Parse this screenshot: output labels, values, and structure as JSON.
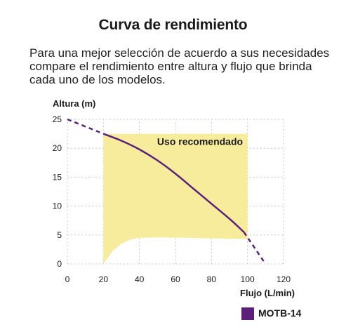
{
  "header": {
    "title": "Curva de rendimiento",
    "description_lines": [
      "Para una mejor selección de acuerdo a sus necesidades",
      "compare el rendimiento entre altura y flujo que brinda",
      "cada uno de los modelos."
    ]
  },
  "colors": {
    "curve": "#5c1f7a",
    "region_fill": "#f7ec9c",
    "grid": "#c8c8c8",
    "axis_text": "#1a1a1a"
  },
  "chart_data": {
    "type": "line",
    "title": "",
    "ylabel": "Altura (m)",
    "xlabel": "Flujo (L/min)",
    "xlim": [
      0,
      120
    ],
    "ylim": [
      0,
      25
    ],
    "x_ticks": [
      0,
      20,
      40,
      60,
      80,
      100,
      120
    ],
    "y_ticks": [
      0,
      5,
      10,
      15,
      20,
      25
    ],
    "grid": "dashed",
    "legend_position": "bottom-right",
    "recommended_region": {
      "label": "Uso recomendado",
      "x_range": [
        20,
        100
      ],
      "top": 22.5,
      "bottom_points": [
        [
          20,
          0
        ],
        [
          25,
          2.2
        ],
        [
          30,
          3.5
        ],
        [
          35,
          4.2
        ],
        [
          40,
          4.5
        ],
        [
          50,
          4.6
        ],
        [
          100,
          4.3
        ]
      ]
    },
    "series": [
      {
        "name": "MOTB-14",
        "color": "#5c1f7a",
        "solid_points": [
          [
            20,
            22.5
          ],
          [
            30,
            21.3
          ],
          [
            40,
            19.8
          ],
          [
            50,
            17.9
          ],
          [
            60,
            15.6
          ],
          [
            70,
            13.0
          ],
          [
            80,
            10.4
          ],
          [
            90,
            7.8
          ],
          [
            98,
            5.5
          ]
        ],
        "dashed_points_start": [
          [
            0,
            25
          ],
          [
            20,
            22.5
          ]
        ],
        "dashed_points_end": [
          [
            98,
            5.5
          ],
          [
            110,
            0
          ]
        ]
      }
    ]
  }
}
